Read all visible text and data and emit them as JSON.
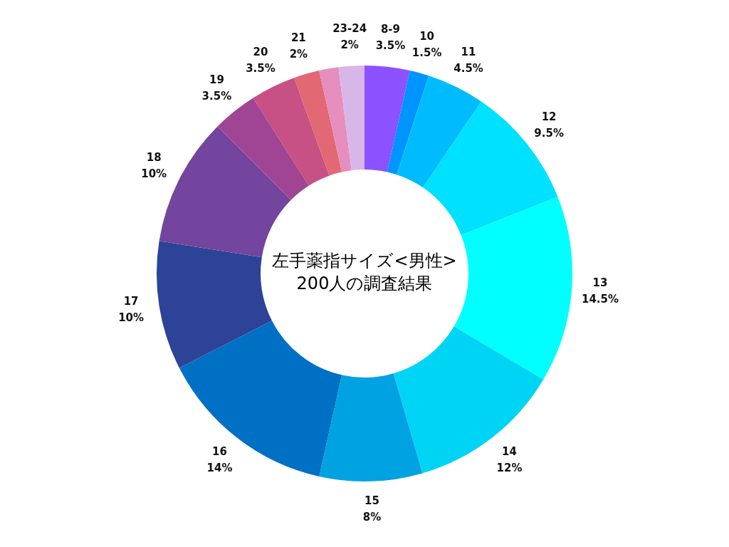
{
  "chart_data": {
    "type": "donut",
    "title": "左手薬指サイズ<男性>",
    "subtitle": "200人の調査結果",
    "categories": [
      "8-9",
      "10",
      "11",
      "12",
      "13",
      "14",
      "15",
      "16",
      "17",
      "18",
      "19",
      "20",
      "21",
      null,
      "23-24"
    ],
    "values": [
      3.5,
      1.5,
      4.5,
      9.5,
      14.5,
      12,
      8,
      14,
      10,
      10,
      3.5,
      3.5,
      2,
      1.5,
      2
    ],
    "value_labels": [
      "3.5%",
      "1.5%",
      "4.5%",
      "9.5%",
      "14.5%",
      "12%",
      "8%",
      "14%",
      "10%",
      "10%",
      "3.5%",
      "3.5%",
      "2%",
      null,
      "2%"
    ],
    "colors": [
      "#8c52ff",
      "#0094ff",
      "#00bcff",
      "#00e0ff",
      "#00ffff",
      "#00d4f5",
      "#00a2e2",
      "#0070c4",
      "#2c4397",
      "#73459e",
      "#a04594",
      "#c75085",
      "#e26874",
      "#e68ebd",
      "#d9b6e8"
    ],
    "legend": false
  }
}
